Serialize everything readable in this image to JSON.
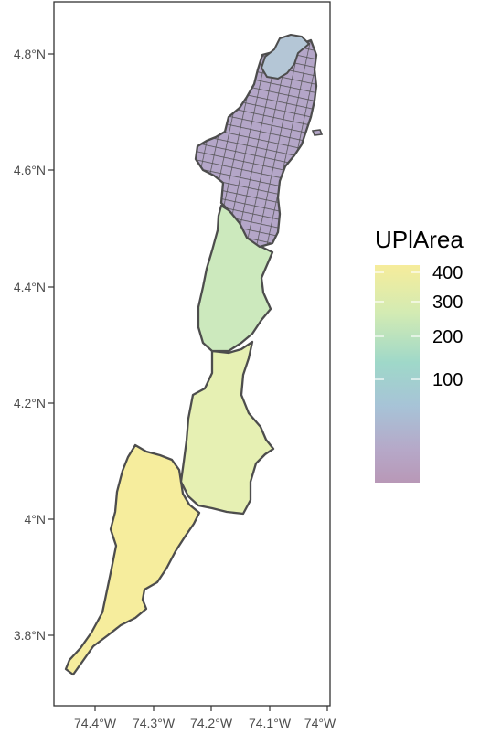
{
  "map": {
    "x_ticks": [
      "74.4°W",
      "74.3°W",
      "74.2°W",
      "74.1°W",
      "74°W"
    ],
    "y_ticks": [
      "4.8°N",
      "4.6°N",
      "4.4°N",
      "4.2°N",
      "4°N",
      "3.8°N"
    ]
  },
  "legend": {
    "title": "UPlArea",
    "labels": [
      "400",
      "300",
      "200",
      "100"
    ],
    "gradient_colors": [
      "#f6ec9b",
      "#d3ebb3",
      "#9fd8c9",
      "#a7c3d7",
      "#b6a8c8",
      "#b898b7"
    ]
  },
  "regions": [
    {
      "name": "southern-region",
      "fill": "#f6ed9d"
    },
    {
      "name": "south-central-region",
      "fill": "#e6f0b3"
    },
    {
      "name": "central-region",
      "fill": "#cce9bd"
    },
    {
      "name": "northern-edge-region",
      "fill": "#b4c6d6"
    },
    {
      "name": "urban-area",
      "fill": "#b4a6c8"
    }
  ],
  "colors": {
    "border": "#4d4d4d",
    "panel_border": "#333333"
  }
}
